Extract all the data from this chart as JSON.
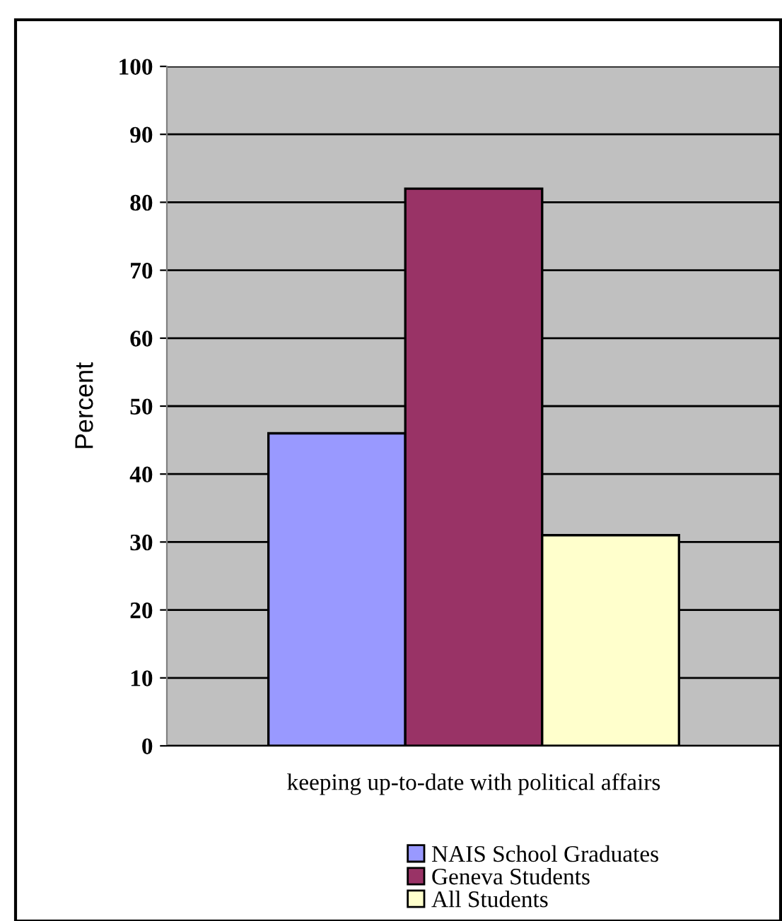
{
  "chart_data": {
    "type": "bar",
    "ylabel": "Percent",
    "categories": [
      "keeping up-to-date with political affairs"
    ],
    "series": [
      {
        "name": "NAIS School Graduates",
        "color": "#9999ff",
        "values": [
          46
        ]
      },
      {
        "name": "Geneva Students",
        "color": "#993366",
        "values": [
          82
        ]
      },
      {
        "name": "All Students",
        "color": "#ffffcc",
        "values": [
          31
        ]
      }
    ],
    "ylim": [
      0,
      100
    ],
    "yticks": [
      0,
      10,
      20,
      30,
      40,
      50,
      60,
      70,
      80,
      90,
      100
    ],
    "grid": "y",
    "legend": "bottom"
  }
}
